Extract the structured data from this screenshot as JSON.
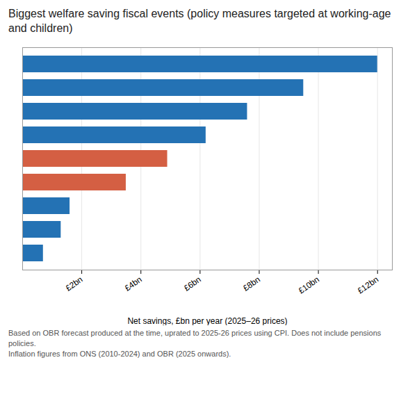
{
  "chart_data": {
    "type": "bar",
    "orientation": "horizontal",
    "title": "Biggest welfare saving fiscal events (policy measures targeted at working-age and children)",
    "categories": [
      null,
      null,
      null,
      null,
      null,
      null,
      null,
      null,
      null
    ],
    "values": [
      12.0,
      9.5,
      7.6,
      6.2,
      4.9,
      3.5,
      1.6,
      1.3,
      0.7
    ],
    "colors": [
      "#2472b4",
      "#2472b4",
      "#2472b4",
      "#2472b4",
      "#d45f43",
      "#d45f43",
      "#2472b4",
      "#2472b4",
      "#2472b4"
    ],
    "xlabel": "Net savings, £bn per year (2025–26 prices)",
    "xlim": [
      0,
      12.5
    ],
    "xticks": [
      {
        "value": 2,
        "label": "£2bn"
      },
      {
        "value": 4,
        "label": "£4bn"
      },
      {
        "value": 6,
        "label": "£6bn"
      },
      {
        "value": 8,
        "label": "£8bn"
      },
      {
        "value": 10,
        "label": "£10bn"
      },
      {
        "value": 12,
        "label": "£12bn"
      }
    ],
    "grid": true,
    "tick_labels": "x",
    "footnote": "Based on OBR forecast produced at the time, uprated to 2025-26 prices using CPI. Does not include pensions policies.\nInflation figures from ONS (2010-2024) and OBR (2025 onwards)."
  }
}
